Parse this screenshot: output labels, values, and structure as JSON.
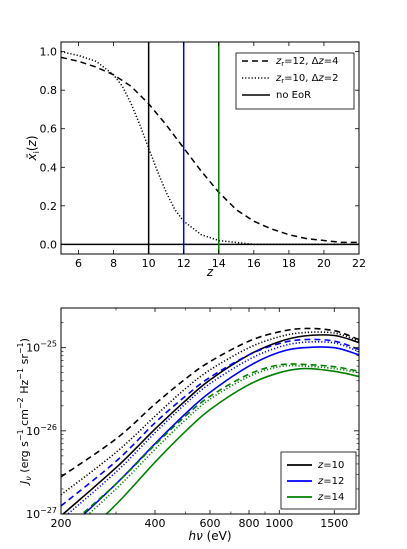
{
  "chart_data": [
    {
      "type": "line",
      "ylabel": "x̄ᵢ(z)",
      "xlabel": "z",
      "xlim": [
        5,
        22
      ],
      "ylim": [
        -0.05,
        1.05
      ],
      "xticks": [
        6,
        8,
        10,
        12,
        14,
        16,
        18,
        20,
        22
      ],
      "yticks": [
        0.0,
        0.2,
        0.4,
        0.6,
        0.8,
        1.0
      ],
      "legend_position": "top-right",
      "series": [
        {
          "name": "z_r=12, Δz=4",
          "label_html": "<tspan font-style='italic'>z</tspan><tspan font-size='7' dy='2'>r</tspan><tspan dy='-2'>=12, Δ</tspan><tspan font-style='italic'>z</tspan>=4",
          "style": "dashed",
          "color": "#000000",
          "x": [
            5,
            6,
            7,
            8,
            9,
            10,
            11,
            12,
            13,
            14,
            15,
            16,
            17,
            18,
            19,
            20,
            21,
            22
          ],
          "y": [
            0.97,
            0.95,
            0.92,
            0.88,
            0.82,
            0.73,
            0.62,
            0.5,
            0.38,
            0.27,
            0.18,
            0.12,
            0.08,
            0.05,
            0.03,
            0.02,
            0.01,
            0.01
          ]
        },
        {
          "name": "z_r=10, Δz=2",
          "label_html": "<tspan font-style='italic'>z</tspan><tspan font-size='7' dy='2'>r</tspan><tspan dy='-2'>=10, Δ</tspan><tspan font-style='italic'>z</tspan>=2",
          "style": "dotted",
          "color": "#000000",
          "x": [
            5,
            6,
            7,
            8,
            8.5,
            9,
            9.5,
            10,
            10.5,
            11,
            11.5,
            12,
            13,
            14,
            15,
            16,
            22
          ],
          "y": [
            1.0,
            0.98,
            0.95,
            0.88,
            0.82,
            0.73,
            0.62,
            0.5,
            0.38,
            0.27,
            0.18,
            0.12,
            0.05,
            0.02,
            0.01,
            0.0,
            0.0
          ]
        },
        {
          "name": "no EoR",
          "label_html": "no EoR",
          "style": "solid",
          "color": "#000000",
          "x": [
            5,
            22
          ],
          "y": [
            0,
            0
          ]
        }
      ],
      "vlines": [
        {
          "x": 10,
          "color": "#000000"
        },
        {
          "x": 12,
          "color": "#0000ff"
        },
        {
          "x": 14,
          "color": "#008000"
        }
      ]
    },
    {
      "type": "line",
      "ylabel": "J_ν (erg s⁻¹ cm⁻² Hz⁻¹ sr⁻¹)",
      "xlabel": "hν (eV)",
      "xscale": "log",
      "yscale": "log",
      "xlim": [
        200,
        1800
      ],
      "ylim": [
        1e-27,
        3e-25
      ],
      "xticks": [
        200,
        400,
        600,
        800,
        1000,
        1500
      ],
      "xtick_labels": [
        "200",
        "400",
        "600",
        "800",
        "1000",
        "1500"
      ],
      "yticks": [
        1e-27,
        1e-26,
        1e-25
      ],
      "legend_position": "bottom-right",
      "legend": [
        {
          "label": "z=10",
          "color": "#000000"
        },
        {
          "label": "z=12",
          "color": "#0000ff"
        },
        {
          "label": "z=14",
          "color": "#008000"
        }
      ],
      "series": [
        {
          "z": 10,
          "variant": "z_r=12, Δz=4",
          "color": "#000000",
          "style": "dashed",
          "x": [
            200,
            300,
            400,
            500,
            600,
            800,
            1000,
            1200,
            1500,
            1800
          ],
          "y": [
            2.8e-27,
            8e-27,
            2.1e-26,
            4.2e-26,
            6.8e-26,
            1.2e-25,
            1.55e-25,
            1.7e-25,
            1.6e-25,
            1.25e-25
          ]
        },
        {
          "z": 10,
          "variant": "z_r=10, Δz=2",
          "color": "#000000",
          "style": "dotted",
          "x": [
            200,
            300,
            400,
            500,
            600,
            800,
            1000,
            1200,
            1500,
            1800
          ],
          "y": [
            1.7e-27,
            5.5e-27,
            1.5e-26,
            3.2e-26,
            5.4e-26,
            1e-25,
            1.35e-25,
            1.52e-25,
            1.5e-25,
            1.2e-25
          ]
        },
        {
          "z": 10,
          "variant": "no EoR",
          "color": "#000000",
          "style": "solid",
          "x": [
            200,
            300,
            400,
            500,
            600,
            800,
            1000,
            1200,
            1500,
            1800
          ],
          "y": [
            9.5e-28,
            3.6e-27,
            1.05e-26,
            2.3e-26,
            4.1e-26,
            8.2e-26,
            1.18e-25,
            1.38e-25,
            1.4e-25,
            1.15e-25
          ]
        },
        {
          "z": 12,
          "variant": "z_r=12, Δz=4",
          "color": "#0000ff",
          "style": "dashed",
          "x": [
            200,
            300,
            400,
            500,
            600,
            800,
            1000,
            1200,
            1500,
            1800
          ],
          "y": [
            1.25e-27,
            4.3e-27,
            1.25e-26,
            2.6e-26,
            4.4e-26,
            8.2e-26,
            1.12e-25,
            1.25e-25,
            1.2e-25,
            9.5e-26
          ]
        },
        {
          "z": 12,
          "variant": "z_r=10, Δz=2",
          "color": "#0000ff",
          "style": "dotted",
          "x": [
            200,
            300,
            400,
            500,
            600,
            800,
            1000,
            1200,
            1500,
            1800
          ],
          "y": [
            8.5e-28,
            3.2e-27,
            9.5e-27,
            2.1e-26,
            3.7e-26,
            7.2e-26,
            1.02e-25,
            1.16e-25,
            1.14e-25,
            9e-26
          ]
        },
        {
          "z": 12,
          "variant": "no EoR",
          "color": "#0000ff",
          "style": "solid",
          "x": [
            200,
            300,
            400,
            500,
            600,
            800,
            1000,
            1200,
            1500,
            1800
          ],
          "y": [
            5.5e-28,
            2.3e-27,
            7e-27,
            1.6e-26,
            2.9e-26,
            6e-26,
            8.8e-26,
            1e-25,
            1e-25,
            8.2e-26
          ]
        },
        {
          "z": 14,
          "variant": "z_r=12, Δz=4",
          "color": "#008000",
          "style": "dashed",
          "x": [
            200,
            300,
            400,
            500,
            600,
            800,
            1000,
            1200,
            1500,
            1800
          ],
          "y": [
            6e-28,
            2.3e-27,
            6.8e-27,
            1.5e-26,
            2.6e-26,
            4.8e-26,
            6.2e-26,
            6.3e-26,
            5.9e-26,
            5.2e-26
          ]
        },
        {
          "z": 14,
          "variant": "z_r=10, Δz=2",
          "color": "#008000",
          "style": "dotted",
          "x": [
            200,
            300,
            400,
            500,
            600,
            800,
            1000,
            1200,
            1500,
            1800
          ],
          "y": [
            5e-28,
            2e-27,
            6e-27,
            1.35e-26,
            2.4e-26,
            4.5e-26,
            5.9e-26,
            6e-26,
            5.6e-26,
            5e-26
          ]
        },
        {
          "z": 14,
          "variant": "no EoR",
          "color": "#008000",
          "style": "solid",
          "x": [
            200,
            300,
            400,
            500,
            600,
            800,
            1000,
            1200,
            1500,
            1800
          ],
          "y": [
            3e-28,
            1.3e-27,
            4.2e-27,
            9.8e-27,
            1.8e-26,
            3.6e-26,
            5e-26,
            5.6e-26,
            5.2e-26,
            4.5e-26
          ]
        }
      ]
    }
  ]
}
